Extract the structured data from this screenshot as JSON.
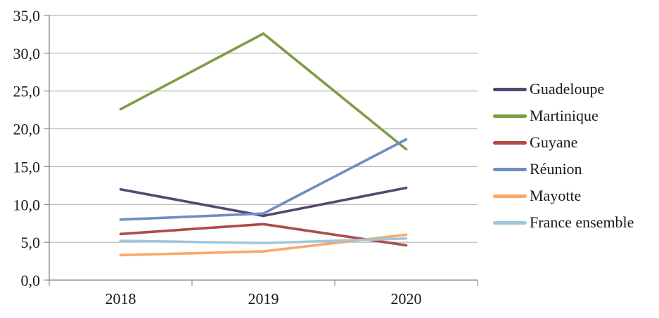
{
  "chart_data": {
    "type": "line",
    "title": "",
    "xlabel": "",
    "ylabel": "",
    "categories": [
      "2018",
      "2019",
      "2020"
    ],
    "series": [
      {
        "name": "Guadeloupe",
        "values": [
          12.0,
          8.5,
          12.2
        ],
        "color": "#584671"
      },
      {
        "name": "Martinique",
        "values": [
          22.6,
          32.6,
          17.3
        ],
        "color": "#7F9D45"
      },
      {
        "name": "Guyane",
        "values": [
          6.1,
          7.4,
          4.6
        ],
        "color": "#B04A45"
      },
      {
        "name": "Réunion",
        "values": [
          8.0,
          8.8,
          18.6
        ],
        "color": "#6F8DC3"
      },
      {
        "name": "Mayotte",
        "values": [
          3.3,
          3.8,
          6.0
        ],
        "color": "#FAA869"
      },
      {
        "name": "France ensemble",
        "values": [
          5.2,
          4.9,
          5.5
        ],
        "color": "#9EC7DC"
      }
    ],
    "ylim": [
      0,
      35
    ],
    "ytick_step": 5,
    "ytick_labels": [
      "0,0",
      "5,0",
      "10,0",
      "15,0",
      "20,0",
      "25,0",
      "30,0",
      "35,0"
    ],
    "grid": true,
    "legend_position": "right"
  },
  "colors": {
    "gridline": "#A6A6A6",
    "axis": "#7F7F7F",
    "text": "#1a1a1a",
    "background": "#FFFFFF"
  }
}
